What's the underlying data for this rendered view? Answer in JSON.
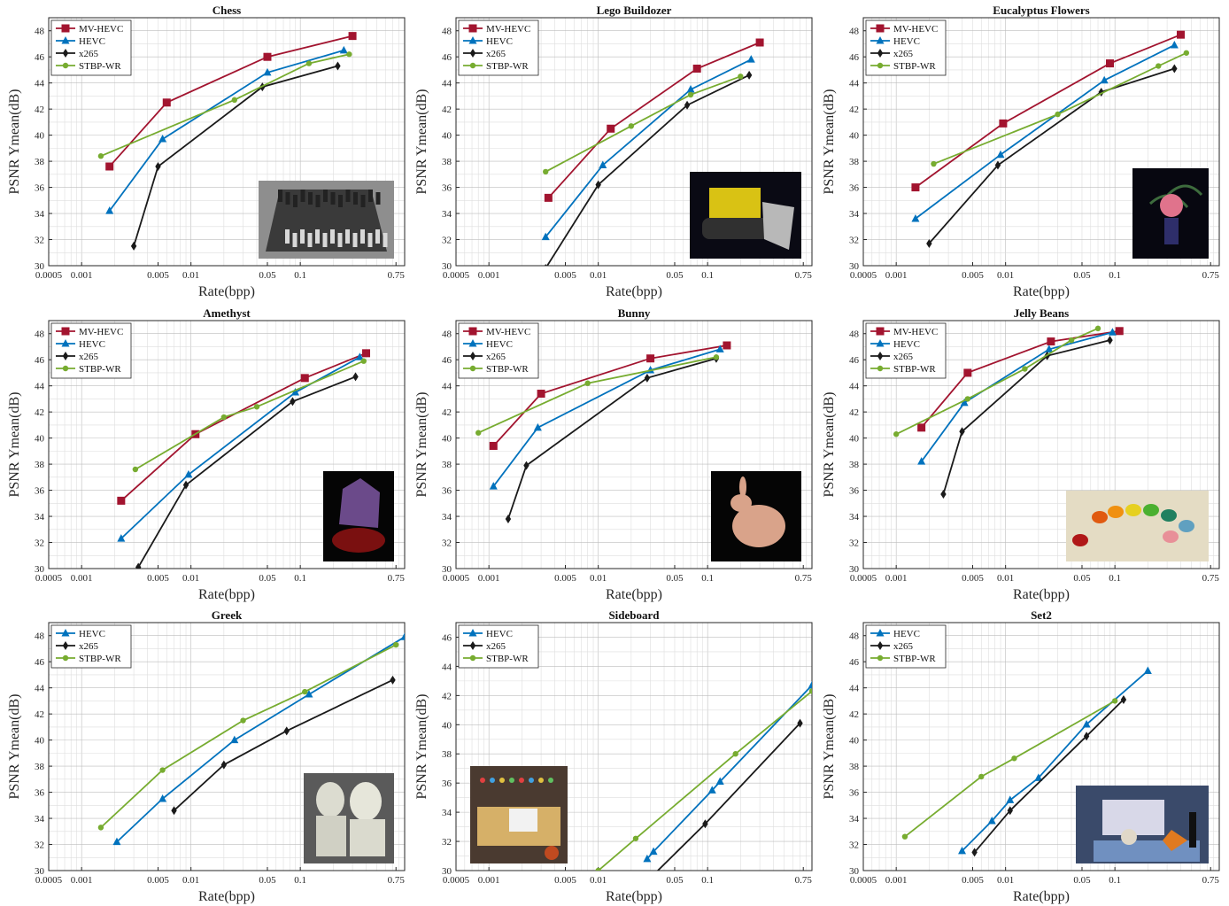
{
  "figure": {
    "colors": {
      "MV-HEVC": "#a2142f",
      "HEVC": "#0072bd",
      "x265": "#1a1a1a",
      "STBP-WR": "#77ac30"
    },
    "markers": {
      "MV-HEVC": "square",
      "HEVC": "triangle",
      "x265": "diamond",
      "STBP-WR": "circle"
    }
  },
  "chart_data": [
    {
      "type": "line",
      "title": "Chess",
      "xlabel": "Rate(bpp)",
      "ylabel": "PSNR Ymean(dB)",
      "xscale": "log",
      "xlim": [
        0.0005,
        0.9
      ],
      "ylim": [
        30,
        49
      ],
      "xticks": [
        "0.0005",
        "0.001",
        "0.005",
        "0.01",
        "0.05",
        "0.1",
        "0.75"
      ],
      "yticks": [
        "30",
        "32",
        "34",
        "36",
        "38",
        "40",
        "42",
        "44",
        "46",
        "48"
      ],
      "grid": true,
      "legend": "top-left",
      "thumbnail": "chess-board-photo",
      "thumbnail_pos": "bottom-right",
      "series": [
        {
          "name": "MV-HEVC",
          "x": [
            0.0018,
            0.006,
            0.05,
            0.3
          ],
          "y": [
            37.6,
            42.5,
            46.0,
            47.6
          ]
        },
        {
          "name": "HEVC",
          "x": [
            0.0018,
            0.0055,
            0.05,
            0.25
          ],
          "y": [
            34.2,
            39.7,
            44.8,
            46.5
          ]
        },
        {
          "name": "x265",
          "x": [
            0.003,
            0.005,
            0.045,
            0.22
          ],
          "y": [
            31.5,
            37.6,
            43.7,
            45.3
          ]
        },
        {
          "name": "STBP-WR",
          "x": [
            0.0015,
            0.025,
            0.12,
            0.28
          ],
          "y": [
            38.4,
            42.7,
            45.5,
            46.2
          ]
        }
      ]
    },
    {
      "type": "line",
      "title": "Lego Buildozer",
      "xlabel": "Rate(bpp)",
      "ylabel": "PSNR Ymean(dB)",
      "xscale": "log",
      "xlim": [
        0.0005,
        0.9
      ],
      "ylim": [
        30,
        49
      ],
      "xticks": [
        "0.0005",
        "0.001",
        "0.005",
        "0.01",
        "0.05",
        "0.1",
        "0.75"
      ],
      "yticks": [
        "30",
        "32",
        "34",
        "36",
        "38",
        "40",
        "42",
        "44",
        "46",
        "48"
      ],
      "grid": true,
      "legend": "top-left",
      "thumbnail": "lego-bulldozer-photo",
      "thumbnail_pos": "bottom-right",
      "series": [
        {
          "name": "MV-HEVC",
          "x": [
            0.0035,
            0.013,
            0.08,
            0.3
          ],
          "y": [
            35.2,
            40.5,
            45.1,
            47.1
          ]
        },
        {
          "name": "HEVC",
          "x": [
            0.0033,
            0.011,
            0.07,
            0.25
          ],
          "y": [
            32.2,
            37.7,
            43.5,
            45.8
          ]
        },
        {
          "name": "x265",
          "x": [
            0.0033,
            0.01,
            0.065,
            0.24
          ],
          "y": [
            29.8,
            36.2,
            42.3,
            44.6
          ]
        },
        {
          "name": "STBP-WR",
          "x": [
            0.0033,
            0.02,
            0.07,
            0.2
          ],
          "y": [
            37.2,
            40.7,
            43.1,
            44.5
          ]
        }
      ]
    },
    {
      "type": "line",
      "title": "Eucalyptus Flowers",
      "xlabel": "Rate(bpp)",
      "ylabel": "PSNR Ymean(dB)",
      "xscale": "log",
      "xlim": [
        0.0005,
        0.9
      ],
      "ylim": [
        30,
        49
      ],
      "xticks": [
        "0.0005",
        "0.001",
        "0.005",
        "0.01",
        "0.05",
        "0.1",
        "0.75"
      ],
      "yticks": [
        "30",
        "32",
        "34",
        "36",
        "38",
        "40",
        "42",
        "44",
        "46",
        "48"
      ],
      "grid": true,
      "legend": "top-left",
      "thumbnail": "eucalyptus-flowers-photo",
      "thumbnail_pos": "bottom-right",
      "series": [
        {
          "name": "MV-HEVC",
          "x": [
            0.0015,
            0.0095,
            0.09,
            0.4
          ],
          "y": [
            36.0,
            40.9,
            45.5,
            47.7
          ]
        },
        {
          "name": "HEVC",
          "x": [
            0.0015,
            0.009,
            0.08,
            0.35
          ],
          "y": [
            33.6,
            38.5,
            44.2,
            46.9
          ]
        },
        {
          "name": "x265",
          "x": [
            0.002,
            0.0085,
            0.075,
            0.35
          ],
          "y": [
            31.7,
            37.7,
            43.3,
            45.1
          ]
        },
        {
          "name": "STBP-WR",
          "x": [
            0.0022,
            0.03,
            0.25,
            0.45
          ],
          "y": [
            37.8,
            41.6,
            45.3,
            46.3
          ]
        }
      ]
    },
    {
      "type": "line",
      "title": "Amethyst",
      "xlabel": "Rate(bpp)",
      "ylabel": "PSNR Ymean(dB)",
      "xscale": "log",
      "xlim": [
        0.0005,
        0.9
      ],
      "ylim": [
        30,
        49
      ],
      "xticks": [
        "0.0005",
        "0.001",
        "0.005",
        "0.01",
        "0.05",
        "0.1",
        "0.75"
      ],
      "yticks": [
        "30",
        "32",
        "34",
        "36",
        "38",
        "40",
        "42",
        "44",
        "46",
        "48"
      ],
      "grid": true,
      "legend": "top-left",
      "thumbnail": "amethyst-crystal-photo",
      "thumbnail_pos": "bottom-right",
      "series": [
        {
          "name": "MV-HEVC",
          "x": [
            0.0023,
            0.011,
            0.11,
            0.4
          ],
          "y": [
            35.2,
            40.3,
            44.6,
            46.5
          ]
        },
        {
          "name": "HEVC",
          "x": [
            0.0023,
            0.0095,
            0.09,
            0.35
          ],
          "y": [
            32.3,
            37.2,
            43.5,
            46.2
          ]
        },
        {
          "name": "x265",
          "x": [
            0.0033,
            0.009,
            0.085,
            0.32
          ],
          "y": [
            30.1,
            36.4,
            42.8,
            44.7
          ]
        },
        {
          "name": "STBP-WR",
          "x": [
            0.0031,
            0.02,
            0.04,
            0.38
          ],
          "y": [
            37.6,
            41.6,
            42.4,
            45.9
          ]
        }
      ]
    },
    {
      "type": "line",
      "title": "Bunny",
      "xlabel": "Rate(bpp)",
      "ylabel": "PSNR Ymean(dB)",
      "xscale": "log",
      "xlim": [
        0.0005,
        0.9
      ],
      "ylim": [
        30,
        49
      ],
      "xticks": [
        "0.0005",
        "0.001",
        "0.005",
        "0.01",
        "0.05",
        "0.1",
        "0.75"
      ],
      "yticks": [
        "30",
        "32",
        "34",
        "36",
        "38",
        "40",
        "42",
        "44",
        "46",
        "48"
      ],
      "grid": true,
      "legend": "top-left",
      "thumbnail": "stanford-bunny-photo",
      "thumbnail_pos": "bottom-right",
      "series": [
        {
          "name": "MV-HEVC",
          "x": [
            0.0011,
            0.003,
            0.03,
            0.15
          ],
          "y": [
            39.4,
            43.4,
            46.1,
            47.1
          ]
        },
        {
          "name": "HEVC",
          "x": [
            0.0011,
            0.0028,
            0.03,
            0.13
          ],
          "y": [
            36.3,
            40.8,
            45.2,
            46.8
          ]
        },
        {
          "name": "x265",
          "x": [
            0.0015,
            0.0022,
            0.028,
            0.12
          ],
          "y": [
            33.8,
            37.9,
            44.6,
            46.1
          ]
        },
        {
          "name": "STBP-WR",
          "x": [
            0.0008,
            0.008,
            0.12
          ],
          "y": [
            40.4,
            44.2,
            46.2
          ]
        }
      ]
    },
    {
      "type": "line",
      "title": "Jelly Beans",
      "xlabel": "Rate(bpp)",
      "ylabel": "PSNR Ymean(dB)",
      "xscale": "log",
      "xlim": [
        0.0005,
        0.9
      ],
      "ylim": [
        30,
        49
      ],
      "xticks": [
        "0.0005",
        "0.001",
        "0.005",
        "0.01",
        "0.05",
        "0.1",
        "0.75"
      ],
      "yticks": [
        "30",
        "32",
        "34",
        "36",
        "38",
        "40",
        "42",
        "44",
        "46",
        "48"
      ],
      "grid": true,
      "legend": "top-left",
      "thumbnail": "jelly-beans-photo",
      "thumbnail_pos": "bottom-right",
      "series": [
        {
          "name": "MV-HEVC",
          "x": [
            0.0017,
            0.0045,
            0.026,
            0.11
          ],
          "y": [
            40.8,
            45.0,
            47.4,
            48.2
          ]
        },
        {
          "name": "HEVC",
          "x": [
            0.0017,
            0.0042,
            0.025,
            0.095
          ],
          "y": [
            38.2,
            42.7,
            46.8,
            48.1
          ]
        },
        {
          "name": "x265",
          "x": [
            0.0027,
            0.004,
            0.024,
            0.09
          ],
          "y": [
            35.7,
            40.5,
            46.3,
            47.5
          ]
        },
        {
          "name": "STBP-WR",
          "x": [
            0.001,
            0.0045,
            0.015,
            0.04,
            0.07
          ],
          "y": [
            40.3,
            43.0,
            45.3,
            47.5,
            48.4
          ]
        }
      ]
    },
    {
      "type": "line",
      "title": "Greek",
      "xlabel": "Rate(bpp)",
      "ylabel": "PSNR Ymean(dB)",
      "xscale": "log",
      "xlim": [
        0.0005,
        0.9
      ],
      "ylim": [
        30,
        49
      ],
      "xticks": [
        "0.0005",
        "0.001",
        "0.005",
        "0.01",
        "0.05",
        "0.1",
        "0.75"
      ],
      "yticks": [
        "30",
        "32",
        "34",
        "36",
        "38",
        "40",
        "42",
        "44",
        "46",
        "48"
      ],
      "grid": true,
      "legend": "top-left",
      "thumbnail": "greek-busts-photo",
      "thumbnail_pos": "bottom-right",
      "series": [
        {
          "name": "HEVC",
          "x": [
            0.0021,
            0.0055,
            0.025,
            0.12,
            0.9
          ],
          "y": [
            32.2,
            35.5,
            40.0,
            43.5,
            47.9
          ]
        },
        {
          "name": "x265",
          "x": [
            0.007,
            0.02,
            0.075,
            0.7
          ],
          "y": [
            34.6,
            38.1,
            40.7,
            44.6
          ]
        },
        {
          "name": "STBP-WR",
          "x": [
            0.0015,
            0.0055,
            0.03,
            0.11,
            0.75
          ],
          "y": [
            33.3,
            37.7,
            41.5,
            43.7,
            47.3
          ]
        }
      ]
    },
    {
      "type": "line",
      "title": "Sideboard",
      "xlabel": "Rate(bpp)",
      "ylabel": "PSNR Ymean(dB)",
      "xscale": "log",
      "xlim": [
        0.0005,
        0.9
      ],
      "ylim": [
        30,
        47
      ],
      "xticks": [
        "0.0005",
        "0.001",
        "0.005",
        "0.01",
        "0.05",
        "0.1",
        "0.75"
      ],
      "yticks": [
        "30",
        "32",
        "34",
        "36",
        "38",
        "40",
        "42",
        "44",
        "46"
      ],
      "grid": true,
      "legend": "top-left",
      "thumbnail": "sideboard-scene-photo",
      "thumbnail_pos": "bottom-left",
      "series": [
        {
          "name": "HEVC",
          "x": [
            0.028,
            0.032,
            0.11,
            0.13,
            0.9
          ],
          "y": [
            30.8,
            31.3,
            35.5,
            36.1,
            42.7
          ]
        },
        {
          "name": "x265",
          "x": [
            0.03,
            0.095,
            0.7
          ],
          "y": [
            29.5,
            33.2,
            40.1
          ]
        },
        {
          "name": "STBP-WR",
          "x": [
            0.01,
            0.022,
            0.18,
            0.9
          ],
          "y": [
            30.0,
            32.2,
            38.0,
            42.3
          ]
        }
      ]
    },
    {
      "type": "line",
      "title": "Set2",
      "xlabel": "Rate(bpp)",
      "ylabel": "PSNR Ymean(dB)",
      "xscale": "log",
      "xlim": [
        0.0005,
        0.9
      ],
      "ylim": [
        30,
        49
      ],
      "xticks": [
        "0.0005",
        "0.001",
        "0.005",
        "0.01",
        "0.05",
        "0.1",
        "0.75"
      ],
      "yticks": [
        "30",
        "32",
        "34",
        "36",
        "38",
        "40",
        "42",
        "44",
        "46",
        "48"
      ],
      "grid": true,
      "legend": "top-left",
      "thumbnail": "set2-still-life-photo",
      "thumbnail_pos": "bottom-right",
      "series": [
        {
          "name": "HEVC",
          "x": [
            0.004,
            0.0075,
            0.011,
            0.02,
            0.055,
            0.2
          ],
          "y": [
            31.5,
            33.8,
            35.4,
            37.1,
            41.2,
            45.3
          ]
        },
        {
          "name": "x265",
          "x": [
            0.0052,
            0.011,
            0.055,
            0.12
          ],
          "y": [
            31.4,
            34.6,
            40.3,
            43.1
          ]
        },
        {
          "name": "STBP-WR",
          "x": [
            0.0012,
            0.006,
            0.012,
            0.1
          ],
          "y": [
            32.6,
            37.2,
            38.6,
            43.0
          ]
        }
      ]
    }
  ]
}
